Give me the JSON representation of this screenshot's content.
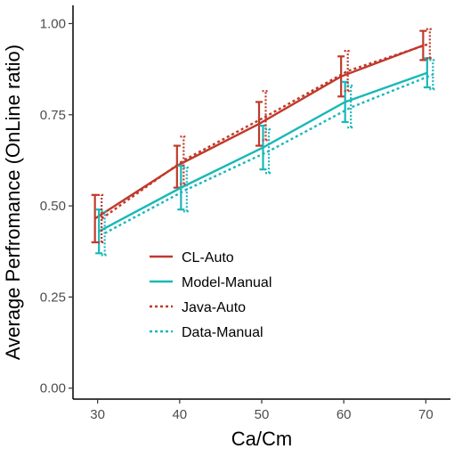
{
  "chart_data": {
    "type": "line",
    "xlabel": "Ca/Cm",
    "ylabel": "Average Perfromance (OnLine ratio)",
    "x": [
      30,
      40,
      50,
      60,
      70
    ],
    "xlim": [
      27,
      73
    ],
    "ylim": [
      -0.03,
      1.05
    ],
    "xticks": [
      "30",
      "40",
      "50",
      "60",
      "70"
    ],
    "yticks": [
      "0.00",
      "0.25",
      "0.50",
      "0.75",
      "1.00"
    ],
    "legend_position": "bottom-center inside plot",
    "grid": false,
    "series": [
      {
        "name": "CL-Auto",
        "color": "#c0392b",
        "dash": "solid",
        "values": [
          0.465,
          0.61,
          0.725,
          0.855,
          0.94
        ],
        "lower": [
          0.4,
          0.55,
          0.665,
          0.8,
          0.9
        ],
        "upper": [
          0.53,
          0.665,
          0.785,
          0.91,
          0.98
        ]
      },
      {
        "name": "Model-Manual",
        "color": "#1ab8b8",
        "dash": "solid",
        "values": [
          0.43,
          0.55,
          0.66,
          0.785,
          0.865
        ],
        "lower": [
          0.37,
          0.49,
          0.6,
          0.73,
          0.825
        ],
        "upper": [
          0.49,
          0.61,
          0.72,
          0.84,
          0.905
        ]
      },
      {
        "name": "Java-Auto",
        "color": "#c0392b",
        "dash": "dotted",
        "values": [
          0.465,
          0.625,
          0.745,
          0.87,
          0.945
        ],
        "lower": [
          0.4,
          0.56,
          0.68,
          0.815,
          0.905
        ],
        "upper": [
          0.53,
          0.69,
          0.815,
          0.925,
          0.985
        ]
      },
      {
        "name": "Data-Manual",
        "color": "#1ab8b8",
        "dash": "dotted",
        "values": [
          0.425,
          0.545,
          0.65,
          0.77,
          0.86
        ],
        "lower": [
          0.365,
          0.485,
          0.59,
          0.715,
          0.82
        ],
        "upper": [
          0.485,
          0.605,
          0.71,
          0.83,
          0.9
        ]
      }
    ]
  }
}
